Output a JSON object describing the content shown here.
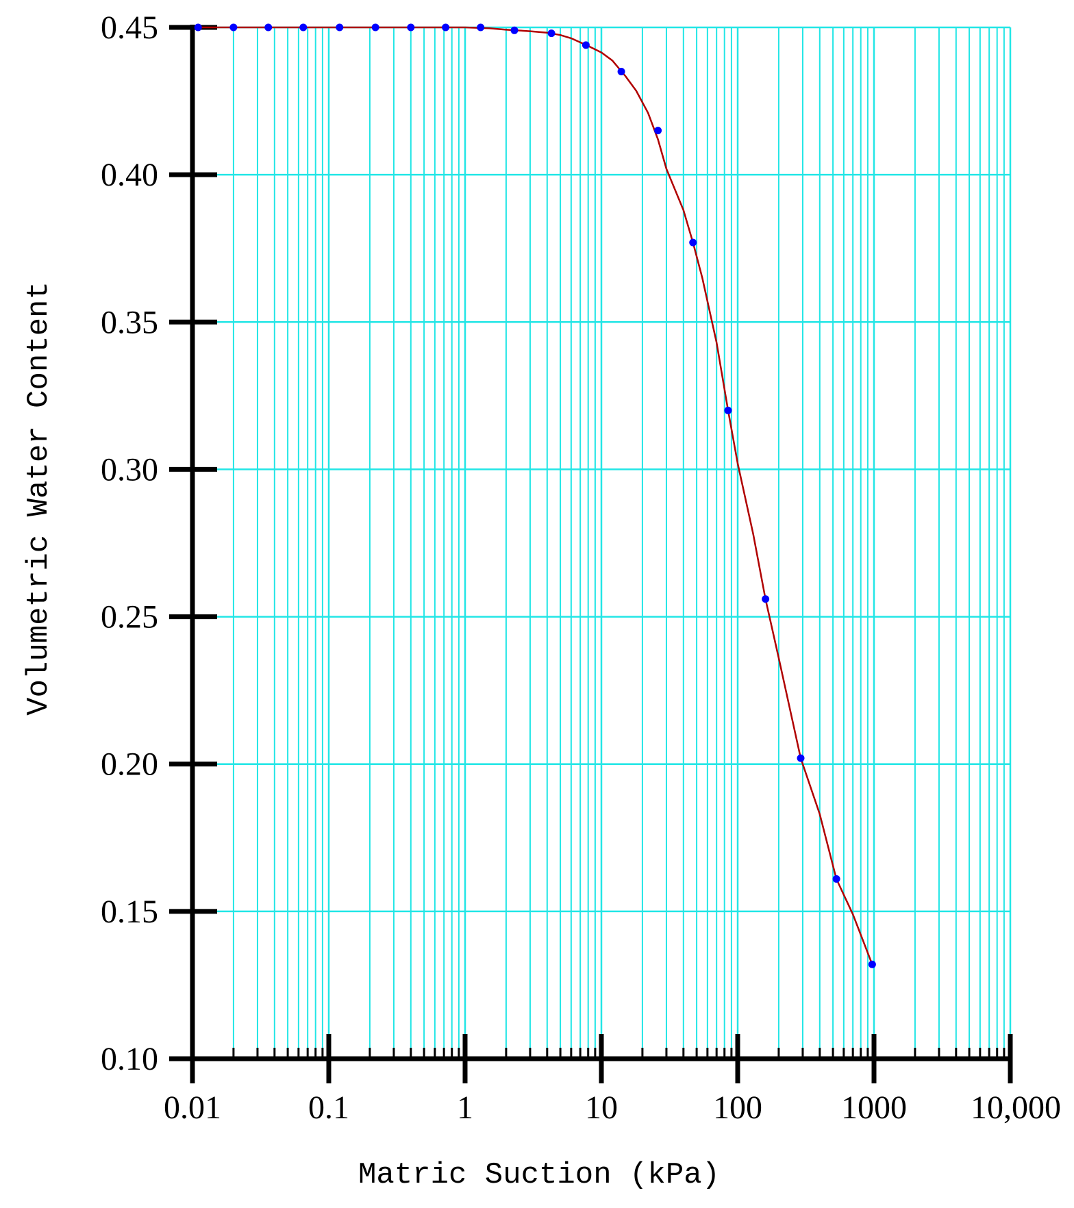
{
  "chart_data": {
    "type": "line",
    "title": "",
    "xlabel": "Matric Suction (kPa)",
    "ylabel": "Volumetric Water Content",
    "x_scale": "log",
    "xlim": [
      0.01,
      10000
    ],
    "ylim": [
      0.1,
      0.45
    ],
    "x_ticks": [
      {
        "value": 0.01,
        "label": "0.01"
      },
      {
        "value": 0.1,
        "label": "0.1"
      },
      {
        "value": 1,
        "label": "1"
      },
      {
        "value": 10,
        "label": "10"
      },
      {
        "value": 100,
        "label": "100"
      },
      {
        "value": 1000,
        "label": "1000"
      },
      {
        "value": 10000,
        "label": "10,000"
      }
    ],
    "y_ticks": [
      {
        "value": 0.45,
        "label": "0.45"
      },
      {
        "value": 0.4,
        "label": "0.40"
      },
      {
        "value": 0.35,
        "label": "0.35"
      },
      {
        "value": 0.3,
        "label": "0.30"
      },
      {
        "value": 0.25,
        "label": "0.25"
      },
      {
        "value": 0.2,
        "label": "0.20"
      },
      {
        "value": 0.15,
        "label": "0.15"
      },
      {
        "value": 0.1,
        "label": "0.10"
      }
    ],
    "grid": true,
    "legend": "none",
    "colors": {
      "grid": "#22e6e6",
      "curve": "#b00000",
      "points": "#0000ff",
      "axis": "#000000",
      "ylabel": "#8b4513"
    },
    "series": [
      {
        "style": "markers",
        "x": [
          0.011,
          0.02,
          0.036,
          0.065,
          0.12,
          0.22,
          0.4,
          0.72,
          1.3,
          2.3,
          4.3,
          7.7,
          14,
          26,
          47,
          85,
          160,
          290,
          530,
          970
        ],
        "y": [
          0.45,
          0.45,
          0.45,
          0.45,
          0.45,
          0.45,
          0.45,
          0.45,
          0.45,
          0.449,
          0.448,
          0.444,
          0.435,
          0.415,
          0.377,
          0.32,
          0.256,
          0.202,
          0.161,
          0.132
        ]
      },
      {
        "style": "line",
        "x": [
          0.011,
          0.1,
          1,
          1.5,
          2,
          3,
          4,
          5,
          6,
          8,
          10,
          12,
          15,
          18,
          22,
          26,
          30,
          40,
          47,
          55,
          70,
          85,
          100,
          130,
          160,
          200,
          290,
          400,
          530,
          700,
          970
        ],
        "y": [
          0.45,
          0.45,
          0.45,
          0.4497,
          0.4492,
          0.4487,
          0.4482,
          0.4474,
          0.4463,
          0.4437,
          0.4415,
          0.4388,
          0.4335,
          0.4285,
          0.421,
          0.412,
          0.402,
          0.388,
          0.377,
          0.365,
          0.343,
          0.32,
          0.302,
          0.278,
          0.256,
          0.236,
          0.202,
          0.183,
          0.161,
          0.149,
          0.132
        ]
      }
    ]
  }
}
